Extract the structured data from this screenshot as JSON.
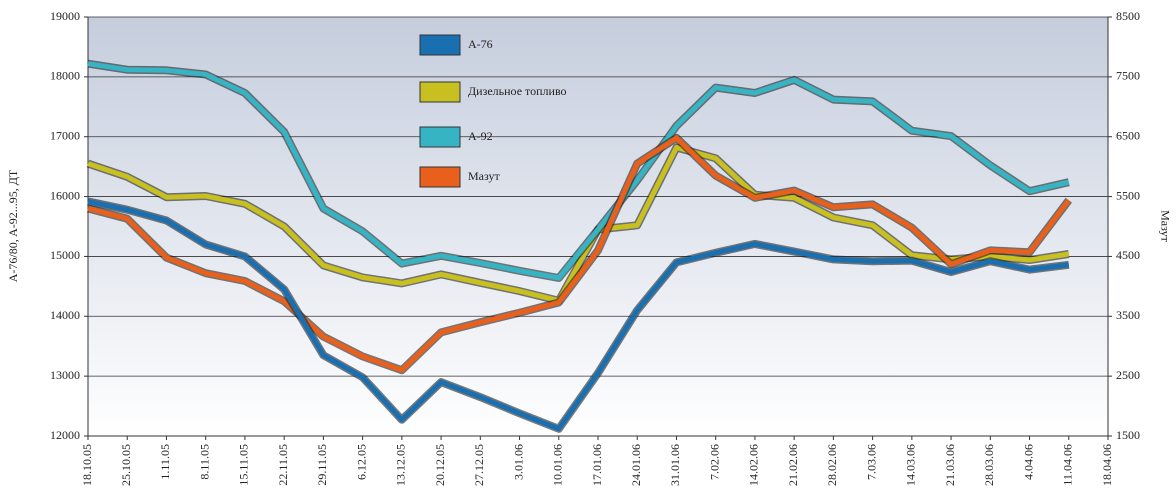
{
  "chart_data": {
    "type": "line",
    "y_label": "A-76/80, A-92...95, ДТ",
    "y2_label": "Мазут",
    "categories": [
      "18.10.05",
      "25.10.05",
      "1.11.05",
      "8.11.05",
      "15.11.05",
      "22.11.05",
      "29.11.05",
      "6.12.05",
      "13.12.05",
      "20.12.05",
      "27.12.05",
      "3.01.06",
      "10.01.06",
      "17.01.06",
      "24.01.06",
      "31.01.06",
      "7.02.06",
      "14.02.06",
      "21.02.06",
      "28.02.06",
      "7.03.06",
      "14.03.06",
      "21.03.06",
      "28.03.06",
      "4.04.06",
      "11.04.06",
      "18.04.06"
    ],
    "series": [
      {
        "name": "А-76",
        "color": "#1a6fb0",
        "values": [
          15920,
          15780,
          15600,
          15200,
          15000,
          14450,
          13350,
          12980,
          12270,
          12900,
          12650,
          12380,
          12120,
          13050,
          14100,
          14900,
          15060,
          15210,
          15080,
          14950,
          14920,
          14930,
          14740,
          14920,
          14780,
          14860,
          null
        ]
      },
      {
        "name": "Дизельное топливо",
        "color": "#c8c020",
        "values": [
          16550,
          16330,
          15990,
          16010,
          15880,
          15500,
          14850,
          14650,
          14550,
          14700,
          14560,
          14420,
          14260,
          15450,
          15520,
          16820,
          16640,
          16030,
          15980,
          15650,
          15520,
          15020,
          14950,
          15000,
          14940,
          15040,
          null
        ]
      },
      {
        "name": "А-92",
        "color": "#36b4c4",
        "values": [
          18220,
          18120,
          18110,
          18040,
          17730,
          17080,
          15800,
          15420,
          14880,
          15010,
          14890,
          14760,
          14640,
          15450,
          16270,
          17180,
          17820,
          17730,
          17950,
          17620,
          17590,
          17100,
          17010,
          16520,
          16090,
          16240,
          null
        ]
      },
      {
        "name": "Мазут",
        "color": "#e8601c",
        "axis": "y2",
        "values": [
          5300,
          5130,
          4480,
          4220,
          4090,
          3750,
          3160,
          2830,
          2600,
          3230,
          3400,
          3560,
          3730,
          4600,
          6050,
          6480,
          5850,
          5480,
          5600,
          5320,
          5370,
          4980,
          4370,
          4600,
          4570,
          5440,
          null
        ]
      }
    ],
    "ylim": [
      12000,
      19000
    ],
    "yticks": [
      12000,
      13000,
      14000,
      15000,
      16000,
      17000,
      18000,
      19000
    ],
    "y2lim": [
      1500,
      8500
    ],
    "y2ticks": [
      1500,
      2500,
      3500,
      4500,
      5500,
      6500,
      7500,
      8500
    ],
    "grid": true
  }
}
